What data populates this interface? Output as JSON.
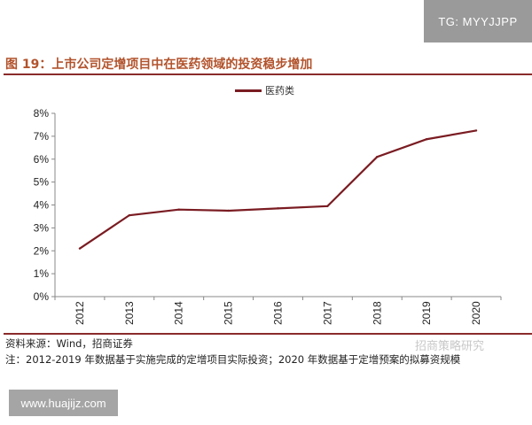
{
  "watermark_tg": "TG: MYYJJPP",
  "watermark_brand": "招商策略研究",
  "site_label": "www.huajijz.com",
  "colors": {
    "line": "#7a1c22",
    "title": "#b2532c",
    "rule": "#8a2b2b"
  },
  "chart_data": {
    "type": "line",
    "title": "图 19：上市公司定增项目中在医药领域的投资稳步增加",
    "categories": [
      "2012",
      "2013",
      "2014",
      "2015",
      "2016",
      "2017",
      "2018",
      "2019",
      "2020"
    ],
    "series": [
      {
        "name": "医药类",
        "values": [
          2.1,
          3.55,
          3.8,
          3.75,
          3.85,
          3.95,
          6.1,
          6.87,
          7.25
        ]
      }
    ],
    "yticks": [
      "0%",
      "1%",
      "2%",
      "3%",
      "4%",
      "5%",
      "6%",
      "7%",
      "8%"
    ],
    "ylim": [
      0,
      8
    ],
    "yunit": "%",
    "grid": false,
    "legend": "top-center",
    "source": "资料来源：Wind，招商证券",
    "note": "注：2012-2019 年数据基于实施完成的定增项目实际投资；2020 年数据基于定增预案的拟募资规模"
  }
}
